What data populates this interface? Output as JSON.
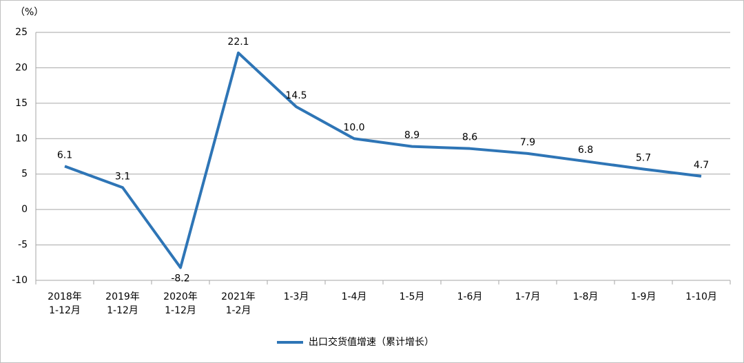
{
  "chart_data": {
    "type": "line",
    "y_axis_label": "（%）",
    "categories": [
      [
        "2018年",
        "1-12月"
      ],
      [
        "2019年",
        "1-12月"
      ],
      [
        "2020年",
        "1-12月"
      ],
      [
        "2021年",
        "1-2月"
      ],
      [
        "1-3月"
      ],
      [
        "1-4月"
      ],
      [
        "1-5月"
      ],
      [
        "1-6月"
      ],
      [
        "1-7月"
      ],
      [
        "1-8月"
      ],
      [
        "1-9月"
      ],
      [
        "1-10月"
      ]
    ],
    "series": [
      {
        "name": "出口交货值增速（累计增长）",
        "color": "#2e75b6",
        "values": [
          6.1,
          3.1,
          -8.2,
          22.1,
          14.5,
          10,
          8.9,
          8.6,
          7.9,
          6.8,
          5.7,
          4.7
        ],
        "value_labels": [
          "6.1",
          "3.1",
          "-8.2",
          "22.1",
          "14.5",
          "10.0",
          "8.9",
          "8.6",
          "7.9",
          "6.8",
          "5.7",
          "4.7"
        ]
      }
    ],
    "ylim": [
      -10,
      25
    ],
    "yticks": [
      -10,
      -5,
      0,
      5,
      10,
      15,
      20,
      25
    ],
    "grid": true,
    "legend": "bottom"
  }
}
